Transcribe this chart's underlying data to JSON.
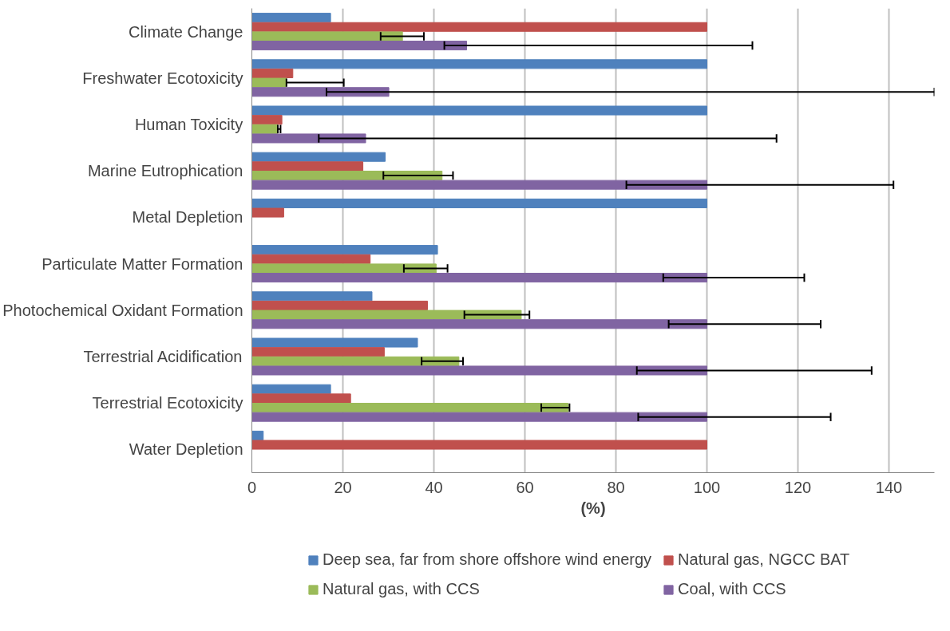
{
  "chart_data": {
    "type": "bar",
    "orientation": "horizontal",
    "xlabel": "(%)",
    "categories": [
      "Climate Change",
      "Freshwater Ecotoxicity",
      "Human Toxicity",
      "Marine Eutrophication",
      "Metal Depletion",
      "Particulate Matter Formation",
      "Photochemical Oxidant Formation",
      "Terrestrial Acidification",
      "Terrestrial Ecotoxicity",
      "Water Depletion"
    ],
    "series": [
      {
        "name": "Deep sea, far from shore offshore wind energy",
        "color": "#4f81bd",
        "values": [
          17.3,
          100,
          100,
          29.3,
          100,
          40.8,
          26.4,
          36.4,
          17.3,
          2.5
        ]
      },
      {
        "name": "Natural gas, NGCC BAT",
        "color": "#c0504d",
        "values": [
          100,
          9.0,
          6.6,
          24.4,
          7.0,
          26.0,
          38.6,
          29.1,
          21.7,
          100
        ]
      },
      {
        "name": "Natural gas, with CCS",
        "color": "#9bbb59",
        "values": [
          33.1,
          7.6,
          5.7,
          41.8,
          null,
          40.5,
          59.2,
          45.5,
          69.5,
          null
        ],
        "errors": [
          [
            28.3,
            37.8
          ],
          [
            7.6,
            20.2
          ],
          [
            5.7,
            6.3
          ],
          [
            28.9,
            44.2
          ],
          null,
          [
            33.4,
            43.0
          ],
          [
            46.7,
            61.0
          ],
          [
            37.3,
            46.4
          ],
          [
            63.6,
            69.8
          ],
          null
        ]
      },
      {
        "name": "Coal, with CCS",
        "color": "#8064a2",
        "values": [
          47.2,
          30.1,
          25.0,
          100,
          null,
          100,
          100,
          100,
          100,
          null
        ],
        "errors": [
          [
            42.3,
            110
          ],
          [
            16.4,
            150
          ],
          [
            14.7,
            115.3
          ],
          [
            82.3,
            141
          ],
          null,
          [
            90.4,
            121.4
          ],
          [
            91.6,
            125
          ],
          [
            84.6,
            136.2
          ],
          [
            84.9,
            127.2
          ],
          null
        ]
      }
    ],
    "xlim": [
      0,
      150
    ],
    "xticks": [
      0,
      20,
      40,
      60,
      80,
      100,
      120,
      140
    ],
    "grid": "x",
    "legend": "bottom"
  }
}
